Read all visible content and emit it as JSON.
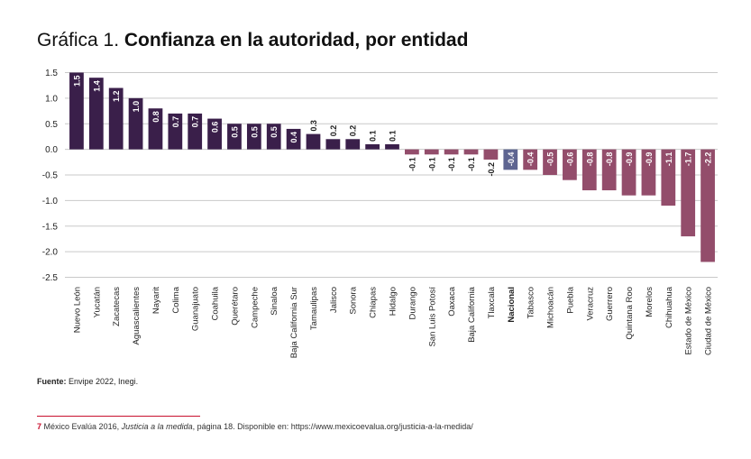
{
  "title": {
    "prefix": "Gráfica 1.",
    "main": "Confianza en la autoridad, por entidad"
  },
  "source": {
    "label": "Fuente:",
    "text": "Envipe 2022, Inegi."
  },
  "footnote": {
    "number": "7",
    "text_before": "México Evalúa 2016, ",
    "title_italic": "Justicia a la medida",
    "text_after": ", página 18. Disponible en: https://www.mexicoevalua.org/justicia-a-la-medida/"
  },
  "colors": {
    "positive": "#3a1f4a",
    "negative": "#934d6b",
    "nacional": "#5e6591",
    "grid": "#c9c9c9"
  },
  "chart_data": {
    "type": "bar",
    "ylim": [
      -2.5,
      1.5
    ],
    "yticks": [
      "1.5",
      "1.0",
      "0.5",
      "0.0",
      "-0.5",
      "-1.0",
      "-1.5",
      "-2.0",
      "-2.5"
    ],
    "ytick_values": [
      1.5,
      1.0,
      0.5,
      0.0,
      -0.5,
      -1.0,
      -1.5,
      -2.0,
      -2.5
    ],
    "grid": true,
    "highlight_category": "Nacional",
    "categories": [
      "Nuevo León",
      "Yucatán",
      "Zacatecas",
      "Aguascalientes",
      "Nayarit",
      "Colima",
      "Guanajuato",
      "Coahuila",
      "Querétaro",
      "Campeche",
      "Sinaloa",
      "Baja California Sur",
      "Tamaulipas",
      "Jalisco",
      "Sonora",
      "Chiapas",
      "Hidalgo",
      "Durango",
      "San Luis Potosí",
      "Oaxaca",
      "Baja California",
      "Tlaxcala",
      "Nacional",
      "Tabasco",
      "Michoacán",
      "Puebla",
      "Veracruz",
      "Guerrero",
      "Quintana Roo",
      "Morelos",
      "Chihuahua",
      "Estado de México",
      "Ciudad de México"
    ],
    "values": [
      1.5,
      1.4,
      1.2,
      1.0,
      0.8,
      0.7,
      0.7,
      0.6,
      0.5,
      0.5,
      0.5,
      0.4,
      0.3,
      0.2,
      0.2,
      0.1,
      0.1,
      -0.1,
      -0.1,
      -0.1,
      -0.1,
      -0.2,
      -0.4,
      -0.4,
      -0.5,
      -0.6,
      -0.8,
      -0.8,
      -0.9,
      -0.9,
      -1.1,
      -1.7,
      -2.2
    ],
    "labels": [
      "1.5",
      "1.4",
      "1.2",
      "1.0",
      "0.8",
      "0.7",
      "0.7",
      "0.6",
      "0.5",
      "0.5",
      "0.5",
      "0.4",
      "0.3",
      "0.2",
      "0.2",
      "0.1",
      "0.1",
      "-0.1",
      "-0.1",
      "-0.1",
      "-0.1",
      "-0.2",
      "-0.4",
      "-0.4",
      "-0.5",
      "-0.6",
      "-0.8",
      "-0.8",
      "-0.9",
      "-0.9",
      "-1.1",
      "-1.7",
      "-2.2"
    ]
  }
}
